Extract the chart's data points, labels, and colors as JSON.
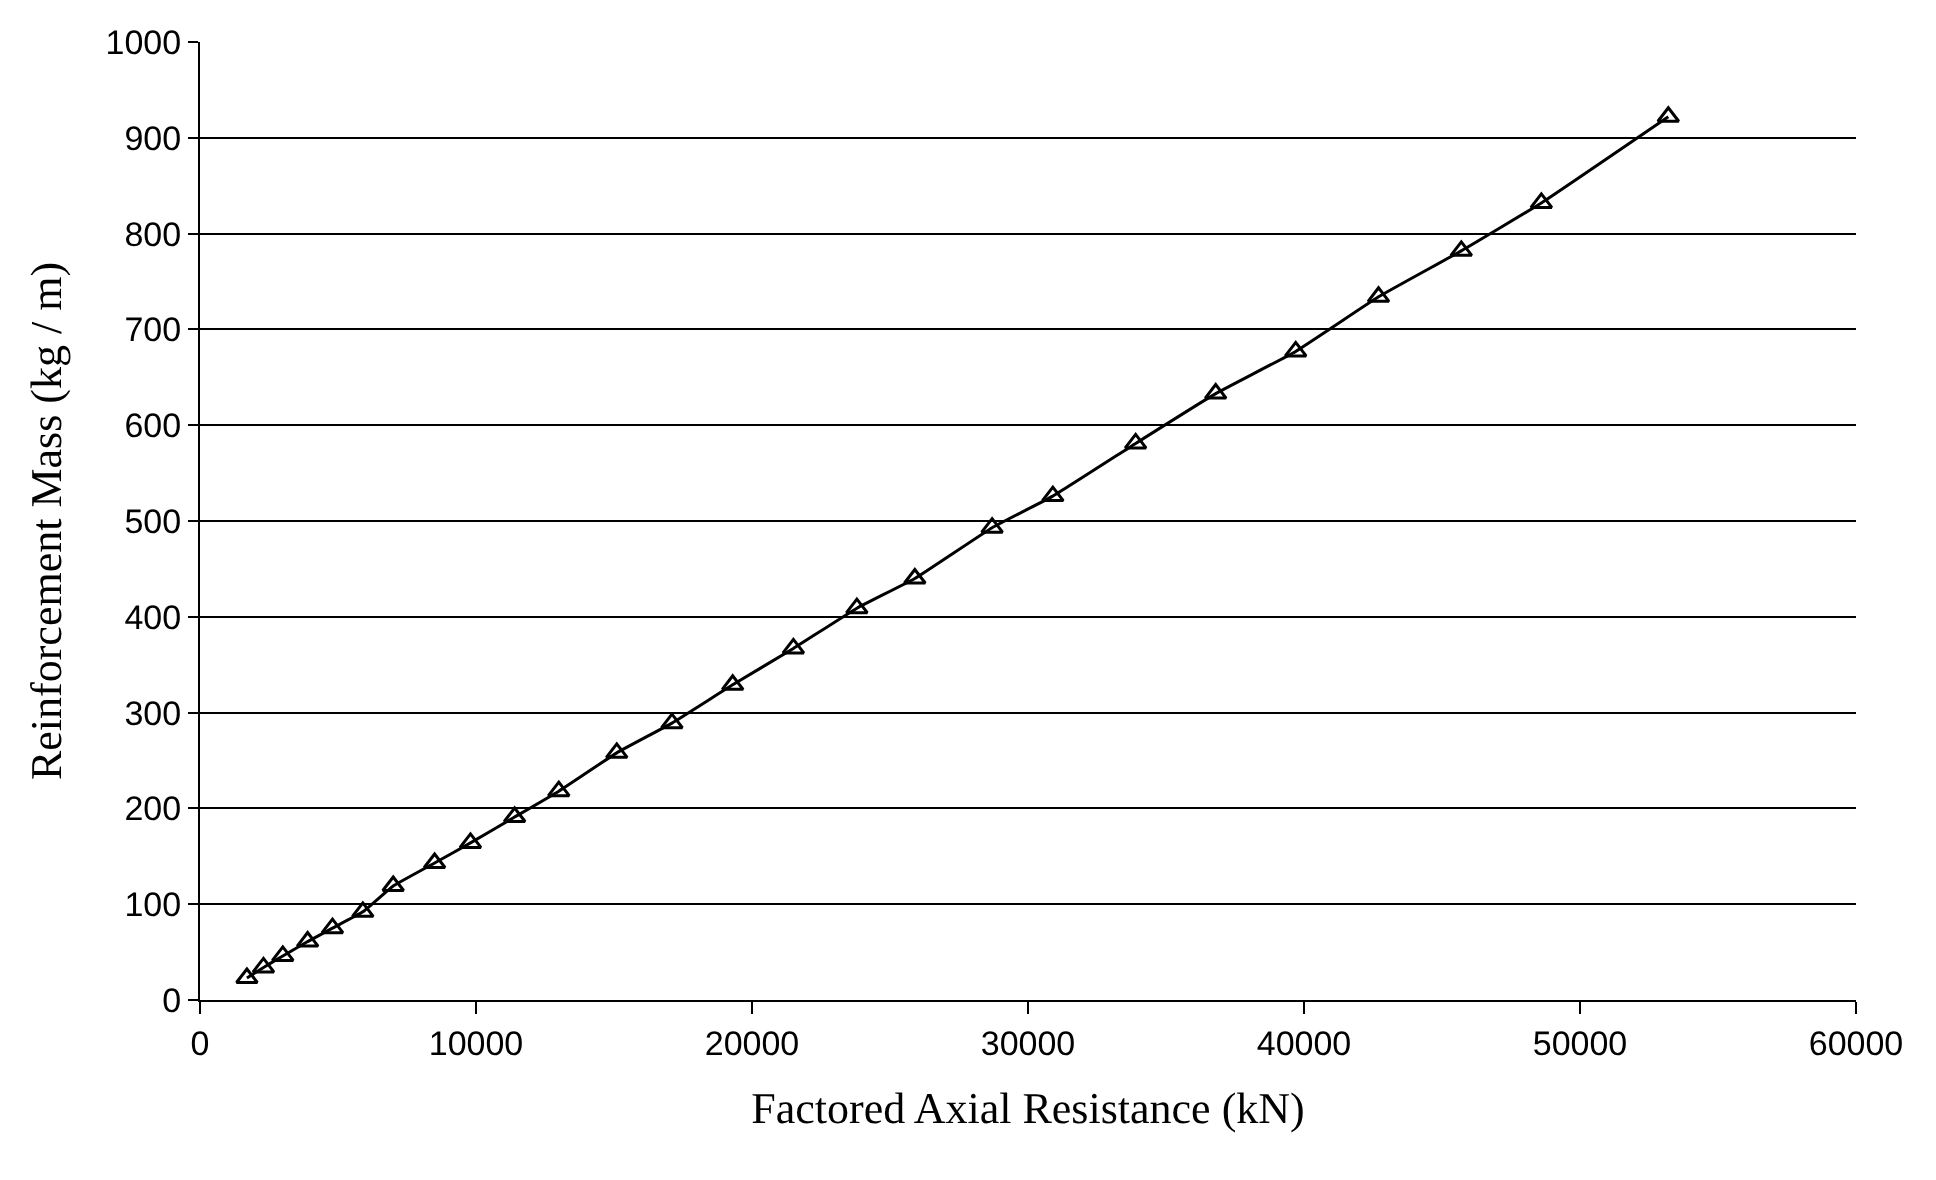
{
  "chart_data": {
    "type": "line",
    "xlabel": "Factored Axial Resistance (kN)",
    "ylabel": "Reinforcement Mass (kg / m)",
    "xlim": [
      0,
      60000
    ],
    "xticks": [
      0,
      10000,
      20000,
      30000,
      40000,
      50000,
      60000
    ],
    "ylim": [
      0,
      1000
    ],
    "yticks": [
      0,
      100,
      200,
      300,
      400,
      500,
      600,
      700,
      800,
      900,
      1000
    ],
    "grid": "y",
    "marker": "triangle",
    "line_style": "solid",
    "legend": false,
    "series": [
      {
        "color": "#000000",
        "x": [
          1700,
          2300,
          3000,
          3900,
          4800,
          5900,
          7000,
          8500,
          9800,
          11400,
          13000,
          15100,
          17100,
          19300,
          21500,
          23800,
          25900,
          28700,
          30900,
          33900,
          36800,
          39700,
          42700,
          45700,
          48600,
          53200
        ],
        "values": [
          23,
          34,
          46,
          61,
          75,
          92,
          119,
          143,
          164,
          191,
          218,
          258,
          289,
          329,
          367,
          409,
          440,
          493,
          526,
          581,
          633,
          677,
          734,
          782,
          832,
          922
        ]
      }
    ]
  }
}
